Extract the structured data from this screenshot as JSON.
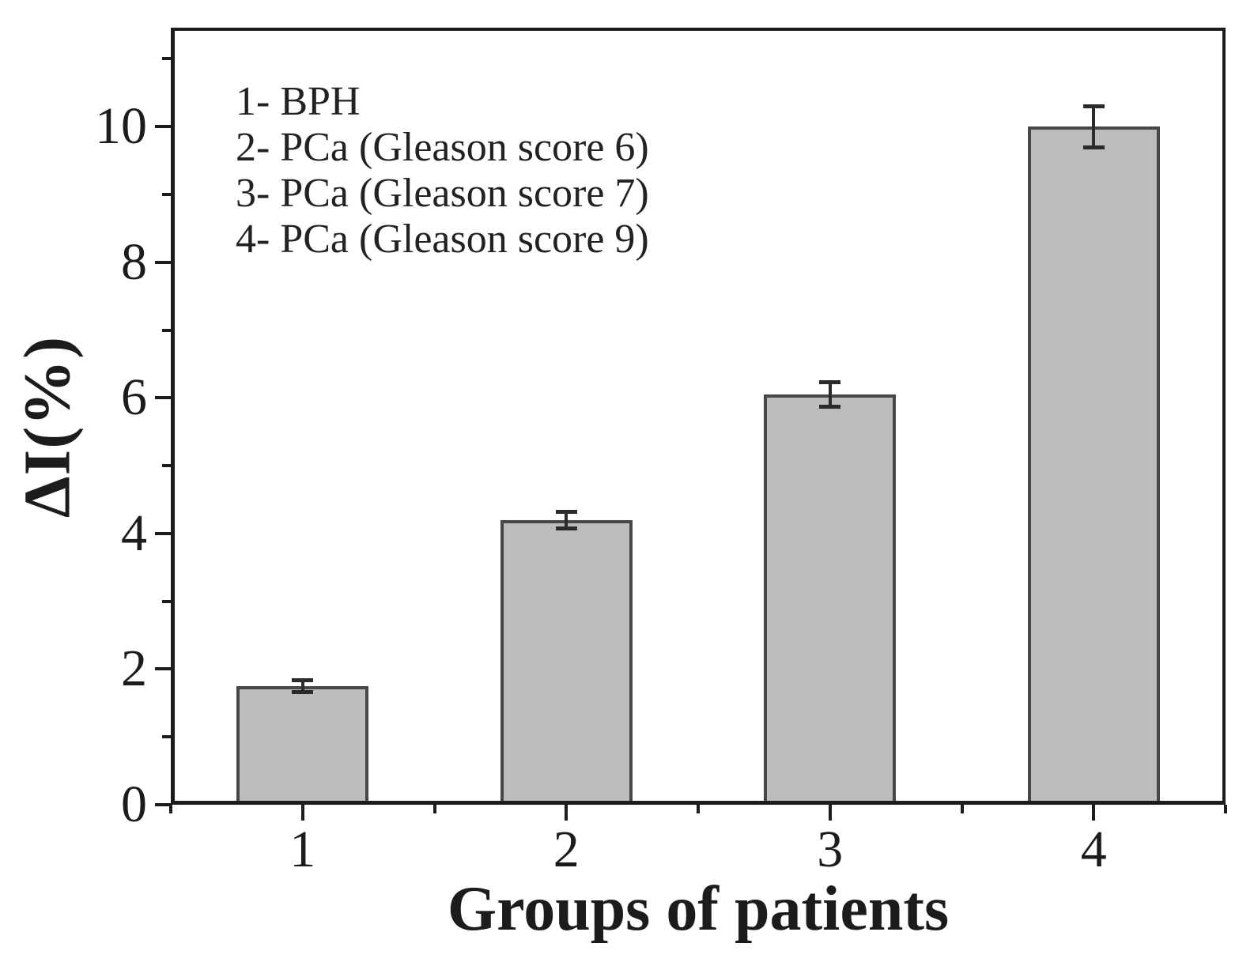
{
  "chart_data": {
    "type": "bar",
    "title": "",
    "xlabel": "Groups of patients",
    "ylabel": "ΔI(%)",
    "categories": [
      "1",
      "2",
      "3",
      "4"
    ],
    "values": [
      1.75,
      4.2,
      6.05,
      10.0
    ],
    "errors": [
      0.09,
      0.13,
      0.19,
      0.31
    ],
    "ytick_labels": [
      "0",
      "2",
      "4",
      "6",
      "8",
      "10"
    ],
    "yticks": [
      0,
      2,
      4,
      6,
      8,
      10
    ],
    "minor_yticks": [
      1,
      3,
      5,
      7,
      9,
      11
    ],
    "xticks": [
      1,
      2,
      3,
      4
    ],
    "minor_xticks": [
      0.5,
      1.5,
      2.5,
      3.5,
      4.5
    ],
    "ylim": [
      0,
      11.46
    ],
    "xlim": [
      0.5,
      4.5
    ],
    "grid": false,
    "legend_position": "top-left-inside",
    "legend": [
      "1- BPH",
      "2- PCa (Gleason score 6)",
      "3- PCa (Gleason score 7)",
      "4- PCa (Gleason score 9)"
    ],
    "colors": {
      "bar_fill": "#bcbcbc",
      "bar_border": "#474747",
      "error_bar": "#2b2b2b",
      "axis": "#1c1c1c",
      "background": "#ffffff"
    }
  }
}
